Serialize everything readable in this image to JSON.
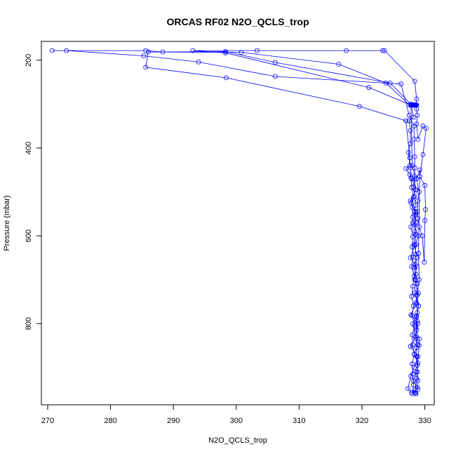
{
  "chart_data": {
    "type": "line",
    "title": "ORCAS RF02 N2O_QCLS_trop",
    "xlabel": "N2O_QCLS_trop",
    "ylabel": "Pressure (mbar)",
    "xlim": [
      269,
      331.5
    ],
    "ylim": [
      985,
      157
    ],
    "y_reversed": true,
    "x_ticks": [
      270,
      280,
      290,
      300,
      310,
      320,
      330
    ],
    "x_tick_labels": [
      "270",
      "280",
      "290",
      "300",
      "310",
      "320",
      "330"
    ],
    "y_ticks": [
      200,
      400,
      600,
      800
    ],
    "y_tick_labels": [
      "200",
      "400",
      "600",
      "800"
    ],
    "series_color": "#0000ff",
    "marker": "open-circle",
    "grid": false,
    "series": [
      {
        "x": [
          327.9,
          327.3,
          327.8,
          328.3,
          328.9,
          327.7,
          328.5,
          328.9,
          327.8,
          328.6,
          329.0,
          328.4,
          328.7,
          327.7,
          328.4,
          329.0,
          328.1,
          328.6,
          327.8,
          328.5,
          328.4,
          328.4,
          328.4,
          328.3,
          328.3,
          327.5,
          326.2,
          306.2,
          294.0,
          285.3,
          273.0,
          270.7,
          285.6,
          288.3,
          298.3,
          306.2,
          324.5,
          327.8,
          328.2,
          327.5,
          327.7,
          327.7,
          327.4,
          327.6,
          327.0,
          327.6,
          327.9,
          328.6,
          327.7,
          328.4,
          328.6,
          328.4,
          328.3,
          328.8,
          328.3,
          328.5,
          328.4,
          329.0,
          328.7,
          328.1,
          328.5,
          328.9,
          328.3,
          328.9,
          328.7,
          328.2,
          328.8,
          328.5,
          328.4,
          328.6
        ],
        "y": [
          957,
          948,
          920,
          900,
          875,
          852,
          830,
          800,
          780,
          752,
          730,
          700,
          670,
          650,
          622,
          600,
          570,
          548,
          525,
          495,
          470,
          445,
          420,
          380,
          350,
          325,
          254,
          237,
          204,
          190,
          178,
          178,
          178,
          181,
          180,
          205,
          252,
          300,
          330,
          338,
          360,
          390,
          410,
          440,
          447,
          460,
          470,
          495,
          520,
          545,
          570,
          590,
          620,
          650,
          672,
          700,
          730,
          760,
          782,
          800,
          830,
          848,
          870,
          890,
          910,
          930,
          945,
          952,
          957,
          960
        ]
      },
      {
        "x": [
          328.9,
          328.9,
          328.8,
          328.8,
          328.7,
          328.7,
          328.6,
          328.7,
          328.8,
          328.8,
          328.7,
          328.6,
          328.8,
          328.6,
          328.5,
          328.5,
          328.6,
          328.5,
          328.4,
          328.4,
          328.5,
          328.4,
          328.2,
          328.4,
          328.0,
          327.8,
          321.1,
          298.3,
          293.1,
          303.3,
          317.5,
          323.3,
          323.6,
          328.4,
          328.7,
          328.6,
          328.7,
          328.8,
          328.7,
          328.9,
          329.7,
          330.2,
          329.7,
          329.2,
          330.0,
          330.1,
          330.0,
          329.9,
          329.6,
          329.1,
          328.9,
          328.8,
          328.9,
          329.1,
          328.7,
          329.2,
          329.0,
          329.1,
          328.8,
          329.0,
          328.7,
          328.6,
          329.1,
          329.1,
          328.7,
          328.5
        ],
        "y": [
          950,
          930,
          910,
          895,
          875,
          855,
          835,
          815,
          795,
          775,
          755,
          735,
          710,
          688,
          665,
          642,
          620,
          597,
          575,
          552,
          530,
          510,
          488,
          465,
          440,
          302,
          262,
          183,
          178,
          178,
          178,
          178,
          178,
          248,
          288,
          302,
          311,
          325,
          345,
          380,
          350,
          355,
          415,
          465,
          485,
          540,
          565,
          660,
          600,
          580,
          560,
          545,
          520,
          500,
          470,
          450,
          640,
          700,
          735,
          760,
          785,
          810,
          835,
          850,
          925,
          958
        ]
      },
      {
        "x": [
          328.0,
          328.2,
          328.1,
          328.0,
          328.3,
          328.1,
          328.0,
          328.4,
          328.0,
          328.2,
          327.9,
          328.1,
          328.3,
          327.9,
          328.2,
          328.0,
          328.1,
          327.8,
          328.1,
          328.0,
          328.2,
          327.9,
          327.8,
          327.7,
          327.6,
          327.0,
          319.6,
          298.4,
          285.6,
          286.0,
          300.8,
          316.3,
          323.8,
          327.6,
          328.4,
          328.4,
          328.6,
          328.2,
          328.5,
          328.3,
          328.7,
          328.0,
          328.4,
          328.1,
          328.3,
          328.0,
          328.2,
          328.5,
          328.1,
          328.2,
          328.1,
          328.1,
          328.2,
          328.0,
          328.3,
          327.9,
          328.1,
          328.2,
          328.0,
          328.1,
          328.0,
          328.2
        ],
        "y": [
          960,
          940,
          915,
          892,
          870,
          848,
          826,
          805,
          782,
          760,
          738,
          715,
          692,
          670,
          648,
          625,
          602,
          580,
          557,
          535,
          512,
          490,
          468,
          445,
          422,
          338,
          305,
          240,
          216,
          181,
          182,
          209,
          252,
          302,
          302,
          302,
          302,
          302,
          302,
          302,
          302,
          302,
          302,
          302,
          302,
          302,
          302,
          302,
          302,
          302,
          302,
          302,
          302,
          302,
          302,
          302,
          302,
          302,
          302,
          302,
          302,
          302
        ]
      }
    ]
  }
}
